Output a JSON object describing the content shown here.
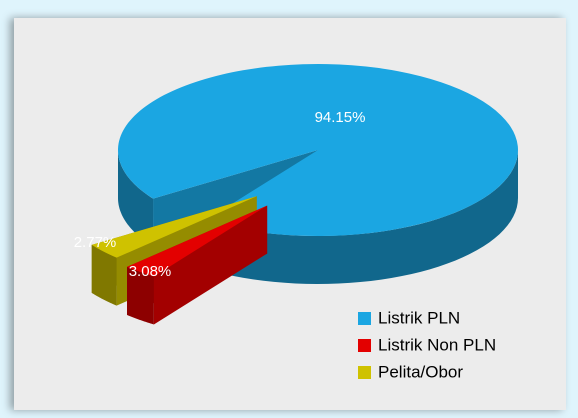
{
  "chart_data": {
    "type": "pie3d",
    "categories": [
      "Listrik PLN",
      "Listrik Non PLN",
      "Pelita/Obor"
    ],
    "values": [
      94.15,
      2.77,
      3.08
    ],
    "value_labels": [
      "94.15%",
      "2.77%",
      "3.08%"
    ],
    "colors": [
      "#1ba6e2",
      "#e30000",
      "#cfc200"
    ],
    "legend": "bottom-right"
  }
}
